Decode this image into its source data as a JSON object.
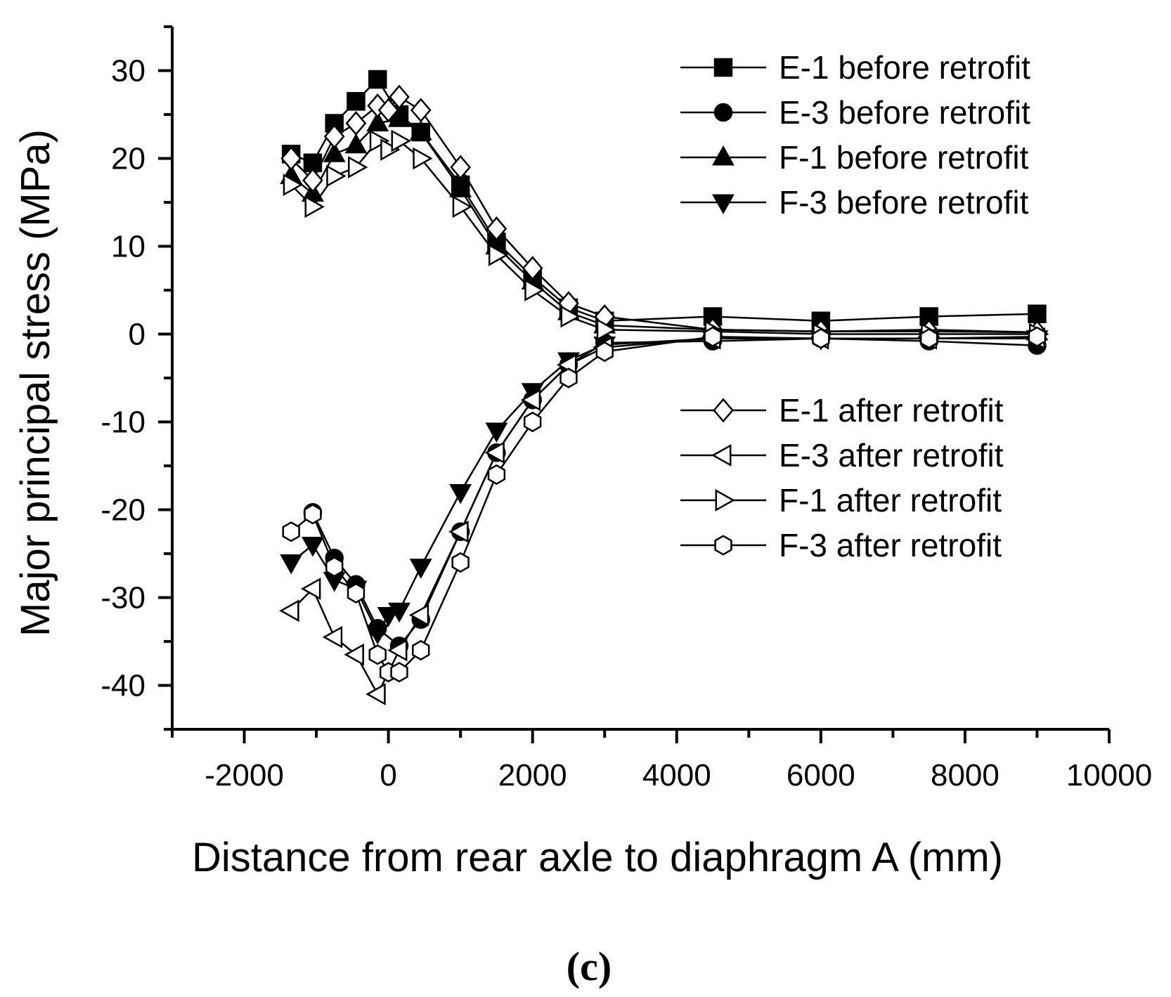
{
  "chart_data": {
    "type": "line",
    "title": "",
    "xlabel": "Distance from rear axle to diaphragm A (mm)",
    "ylabel": "Major principal stress (MPa)",
    "xlim": [
      -3000,
      10000
    ],
    "ylim": [
      -45,
      35
    ],
    "xticks": [
      -2000,
      0,
      2000,
      4000,
      6000,
      8000,
      10000
    ],
    "yticks": [
      30,
      20,
      10,
      0,
      -10,
      -20,
      -30,
      -40
    ],
    "xtick_labels": [
      "-2000",
      "0",
      "2000",
      "4000",
      "6000",
      "8000",
      "10000"
    ],
    "ytick_labels": [
      "30",
      "20",
      "10",
      "0",
      "-10",
      "-20",
      "-30",
      "-40"
    ],
    "grid": false,
    "caption_open": "(",
    "caption_letter": "c",
    "caption_close": ")",
    "legend_groups": [
      {
        "position": "top-right",
        "series": [
          "E-1 before retrofit",
          "E-3 before retrofit",
          "F-1 before retrofit",
          "F-3 before retrofit"
        ]
      },
      {
        "position": "middle-right",
        "series": [
          "E-1 after retrofit",
          "E-3 after retrofit",
          "F-1 after retrofit",
          "F-3 after retrofit"
        ]
      }
    ],
    "series": [
      {
        "name": "E-1 before retrofit",
        "marker": "square",
        "filled": true,
        "x": [
          -1350,
          -1050,
          -750,
          -450,
          -150,
          150,
          450,
          1000,
          1500,
          2000,
          2500,
          3000,
          4500,
          6000,
          7500,
          9000
        ],
        "y": [
          20.5,
          19.5,
          24,
          26.5,
          29,
          25,
          23,
          17,
          10.5,
          6.5,
          3,
          1.5,
          2,
          1.5,
          2,
          2.3
        ]
      },
      {
        "name": "E-3 before retrofit",
        "marker": "circle",
        "filled": true,
        "x": [
          -1350,
          -1050,
          -750,
          -450,
          -150,
          150,
          450,
          1000,
          1500,
          2000,
          2500,
          3000,
          4500,
          6000,
          7500,
          9000,
          -1050,
          -750,
          -450,
          -150,
          150,
          450,
          1000,
          1500,
          2000,
          2500,
          3000,
          4500,
          6000,
          7500,
          9000
        ],
        "y": [
          null,
          null,
          null,
          null,
          null,
          null,
          null,
          null,
          null,
          null,
          null,
          null,
          null,
          null,
          null,
          null,
          -20.3,
          -25.5,
          -28.5,
          -33.5,
          -35.5,
          -32.5,
          -22.5,
          -13.5,
          -7.5,
          -3.5,
          -1,
          -0.8,
          -0.5,
          -0.8,
          -1.3
        ]
      },
      {
        "name": "F-1 before retrofit",
        "marker": "triangle-up",
        "filled": true,
        "x": [
          -1350,
          -1050,
          -750,
          -450,
          -150,
          150,
          450,
          1000,
          1500,
          2000,
          2500,
          3000,
          4500,
          6000,
          7500,
          9000
        ],
        "y": [
          18,
          16,
          20.5,
          21.5,
          24,
          24.5,
          23,
          16.5,
          10,
          6,
          2.5,
          1,
          0.5,
          0.3,
          0.5,
          0.2
        ]
      },
      {
        "name": "F-3 before retrofit",
        "marker": "triangle-down",
        "filled": true,
        "x": [
          -1350,
          -1050,
          -750,
          -450,
          -150,
          0,
          150,
          450,
          1000,
          1500,
          2000,
          2500,
          3000,
          4500,
          6000,
          7500,
          9000
        ],
        "y": [
          -26,
          -24,
          -28,
          -29,
          -34,
          -32,
          -31.5,
          -26.5,
          -18,
          -11,
          -6.5,
          -3,
          -1.2,
          -0.5,
          -0.5,
          -0.5,
          -0.5
        ]
      },
      {
        "name": "E-1 after retrofit",
        "marker": "diamond",
        "filled": false,
        "x": [
          -1350,
          -1050,
          -750,
          -450,
          -150,
          0,
          150,
          450,
          1000,
          1500,
          2000,
          2500,
          3000,
          4500,
          6000,
          7500,
          9000
        ],
        "y": [
          20,
          17.5,
          22.5,
          24,
          26,
          25.5,
          27,
          25.5,
          19,
          12,
          7.5,
          3.5,
          2,
          0.5,
          0.3,
          0.3,
          0.2
        ]
      },
      {
        "name": "E-3 after retrofit",
        "marker": "triangle-left",
        "filled": false,
        "x": [
          -1350,
          -1050,
          -750,
          -450,
          -150,
          150,
          450,
          1000,
          1500,
          2000,
          2500,
          3000,
          4500,
          6000,
          7500,
          9000
        ],
        "y": [
          -31.5,
          -29,
          -34.5,
          -36.5,
          -41,
          -36,
          -32,
          -22.5,
          -13.5,
          -7.5,
          -3.5,
          -1.5,
          -0.5,
          -0.5,
          -0.5,
          -0.5
        ]
      },
      {
        "name": "F-1 after retrofit",
        "marker": "triangle-right",
        "filled": false,
        "x": [
          -1350,
          -1050,
          -750,
          -450,
          -150,
          0,
          150,
          450,
          1000,
          1500,
          2000,
          2500,
          3000,
          4500,
          6000,
          7500,
          9000
        ],
        "y": [
          17,
          14.5,
          18,
          19,
          22,
          21,
          22,
          20,
          14.5,
          9,
          5,
          2,
          0.5,
          0.3,
          0,
          0,
          0
        ]
      },
      {
        "name": "F-3 after retrofit",
        "marker": "hexagon",
        "filled": false,
        "x": [
          -1350,
          -1050,
          -750,
          -450,
          -150,
          0,
          150,
          450,
          1000,
          1500,
          2000,
          2500,
          3000,
          4500,
          6000,
          7500,
          9000
        ],
        "y": [
          -22.5,
          -20.5,
          -26.5,
          -29.5,
          -36.5,
          -38.5,
          -38.5,
          -36,
          -26,
          -16,
          -10,
          -5,
          -2,
          -0.3,
          -0.5,
          -0.5,
          -0.3
        ]
      }
    ]
  }
}
